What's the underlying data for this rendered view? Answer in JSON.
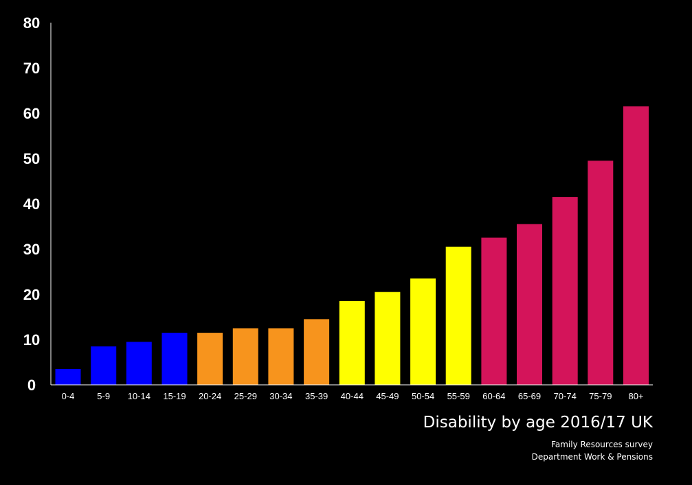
{
  "chart_data": {
    "type": "bar",
    "title": "Disability by age 2016/17 UK",
    "source_lines": [
      "Family Resources survey",
      "Department Work & Pensions"
    ],
    "xlabel": "",
    "ylabel": "",
    "ylim": [
      0,
      80
    ],
    "yticks": [
      0,
      10,
      20,
      30,
      40,
      50,
      60,
      70,
      80
    ],
    "grid": false,
    "categories": [
      "0-4",
      "5-9",
      "10-14",
      "15-19",
      "20-24",
      "25-29",
      "30-34",
      "35-39",
      "40-44",
      "45-49",
      "50-54",
      "55-59",
      "60-64",
      "65-69",
      "70-74",
      "75-79",
      "80+"
    ],
    "values": [
      3.5,
      8.5,
      9.5,
      11.5,
      11.5,
      12.5,
      12.5,
      14.5,
      18.5,
      20.5,
      23.5,
      30.5,
      32.5,
      35.5,
      41.5,
      49.5,
      61.5
    ],
    "bar_colors": [
      "#0000ff",
      "#0000ff",
      "#0000ff",
      "#0000ff",
      "#f7941d",
      "#f7941d",
      "#f7941d",
      "#f7941d",
      "#ffff00",
      "#ffff00",
      "#ffff00",
      "#ffff00",
      "#d4145a",
      "#d4145a",
      "#d4145a",
      "#d4145a",
      "#d4145a"
    ]
  },
  "colors": {
    "background": "#000000",
    "axis": "#ffffff",
    "text": "#ffffff"
  }
}
